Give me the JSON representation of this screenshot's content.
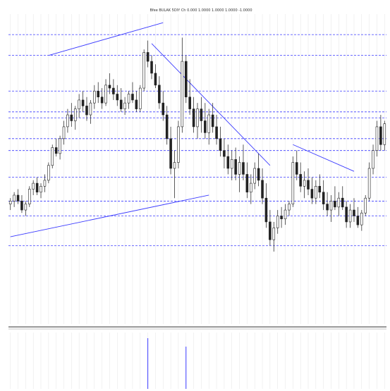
{
  "header": {
    "title": "Bfee BULAK 5DIY Ch 0.000 1.0000 1.0000 1.0000 -1.0000"
  },
  "chart_data": {
    "type": "candlestick",
    "title": "Bfee BULAK 5DIY Ch 0.000 1.0000 1.0000 1.0000 -1.0000",
    "xlabel": "",
    "ylabel": "",
    "ylim": [
      0,
      100
    ],
    "grid": true,
    "colors": {
      "candle": "#222222",
      "wick": "#333333",
      "level_line": "#3a3aff",
      "trend_line": "#3a3aff",
      "volume": "#3a3aff",
      "grid": "#e4e4e4"
    },
    "candles": [
      [
        38,
        40,
        36,
        39
      ],
      [
        39,
        42,
        37,
        41
      ],
      [
        41,
        43,
        38,
        39
      ],
      [
        39,
        41,
        35,
        36
      ],
      [
        36,
        39,
        34,
        38
      ],
      [
        38,
        44,
        37,
        43
      ],
      [
        43,
        46,
        41,
        45
      ],
      [
        45,
        47,
        41,
        42
      ],
      [
        42,
        45,
        40,
        44
      ],
      [
        44,
        48,
        42,
        46
      ],
      [
        46,
        52,
        45,
        51
      ],
      [
        51,
        58,
        50,
        57
      ],
      [
        57,
        60,
        54,
        55
      ],
      [
        55,
        61,
        53,
        60
      ],
      [
        60,
        66,
        58,
        64
      ],
      [
        64,
        70,
        62,
        68
      ],
      [
        68,
        72,
        64,
        66
      ],
      [
        66,
        71,
        63,
        70
      ],
      [
        70,
        75,
        67,
        73
      ],
      [
        73,
        76,
        69,
        71
      ],
      [
        71,
        74,
        66,
        68
      ],
      [
        68,
        73,
        65,
        72
      ],
      [
        72,
        78,
        70,
        76
      ],
      [
        76,
        79,
        72,
        74
      ],
      [
        74,
        77,
        70,
        72
      ],
      [
        72,
        80,
        71,
        78
      ],
      [
        78,
        82,
        75,
        77
      ],
      [
        77,
        80,
        73,
        75
      ],
      [
        75,
        78,
        71,
        73
      ],
      [
        73,
        77,
        69,
        70
      ],
      [
        70,
        74,
        68,
        72
      ],
      [
        72,
        76,
        70,
        75
      ],
      [
        75,
        79,
        72,
        73
      ],
      [
        73,
        76,
        69,
        70
      ],
      [
        70,
        78,
        69,
        77
      ],
      [
        77,
        90,
        76,
        89
      ],
      [
        89,
        93,
        84,
        86
      ],
      [
        86,
        88,
        80,
        82
      ],
      [
        82,
        85,
        77,
        78
      ],
      [
        78,
        81,
        70,
        72
      ],
      [
        72,
        76,
        66,
        68
      ],
      [
        68,
        71,
        58,
        60
      ],
      [
        60,
        64,
        48,
        50
      ],
      [
        50,
        56,
        40,
        52
      ],
      [
        52,
        66,
        50,
        64
      ],
      [
        64,
        94,
        62,
        86
      ],
      [
        86,
        88,
        72,
        74
      ],
      [
        74,
        80,
        68,
        70
      ],
      [
        70,
        74,
        62,
        64
      ],
      [
        64,
        72,
        60,
        70
      ],
      [
        70,
        74,
        62,
        66
      ],
      [
        66,
        72,
        60,
        62
      ],
      [
        62,
        70,
        58,
        68
      ],
      [
        68,
        72,
        62,
        64
      ],
      [
        64,
        68,
        58,
        60
      ],
      [
        60,
        64,
        54,
        56
      ],
      [
        56,
        60,
        50,
        54
      ],
      [
        54,
        58,
        48,
        50
      ],
      [
        50,
        56,
        46,
        53
      ],
      [
        53,
        57,
        46,
        48
      ],
      [
        48,
        54,
        42,
        52
      ],
      [
        52,
        58,
        46,
        48
      ],
      [
        48,
        52,
        40,
        42
      ],
      [
        42,
        48,
        38,
        45
      ],
      [
        45,
        52,
        43,
        50
      ],
      [
        50,
        55,
        44,
        46
      ],
      [
        46,
        50,
        38,
        40
      ],
      [
        40,
        45,
        30,
        32
      ],
      [
        32,
        36,
        24,
        26
      ],
      [
        26,
        32,
        22,
        30
      ],
      [
        30,
        36,
        28,
        34
      ],
      [
        34,
        37,
        30,
        33
      ],
      [
        33,
        38,
        31,
        36
      ],
      [
        36,
        39,
        34,
        38
      ],
      [
        38,
        54,
        37,
        52
      ],
      [
        52,
        56,
        46,
        48
      ],
      [
        48,
        52,
        42,
        44
      ],
      [
        44,
        49,
        40,
        46
      ],
      [
        46,
        50,
        41,
        43
      ],
      [
        43,
        47,
        38,
        40
      ],
      [
        40,
        46,
        38,
        44
      ],
      [
        44,
        48,
        40,
        42
      ],
      [
        42,
        46,
        36,
        38
      ],
      [
        38,
        42,
        34,
        36
      ],
      [
        36,
        41,
        32,
        39
      ],
      [
        39,
        44,
        36,
        37
      ],
      [
        37,
        42,
        34,
        40
      ],
      [
        40,
        44,
        36,
        37
      ],
      [
        37,
        39,
        30,
        32
      ],
      [
        32,
        38,
        30,
        36
      ],
      [
        36,
        40,
        32,
        34
      ],
      [
        34,
        37,
        30,
        31
      ],
      [
        31,
        36,
        29,
        35
      ],
      [
        35,
        41,
        34,
        40
      ],
      [
        40,
        52,
        39,
        50
      ],
      [
        50,
        58,
        48,
        56
      ],
      [
        56,
        66,
        54,
        64
      ],
      [
        64,
        68,
        56,
        58
      ],
      [
        58,
        66,
        56,
        65
      ]
    ],
    "horizontal_levels": [
      95,
      88,
      76,
      69,
      67,
      60,
      56,
      47,
      39,
      34,
      24
    ],
    "trendlines": [
      {
        "from": [
          10,
          88
        ],
        "to": [
          40,
          99
        ]
      },
      {
        "from": [
          0,
          27
        ],
        "to": [
          52,
          41
        ]
      },
      {
        "from": [
          37,
          92
        ],
        "to": [
          68,
          51
        ]
      },
      {
        "from": [
          74,
          58
        ],
        "to": [
          90,
          49
        ]
      }
    ],
    "volume": [
      0,
      0,
      0,
      0,
      0,
      0,
      0,
      0,
      0,
      0,
      0,
      0,
      0,
      0,
      0,
      0,
      0,
      0,
      0,
      0,
      0,
      0,
      0,
      0,
      0,
      0,
      0,
      0,
      0,
      0,
      0,
      0,
      0,
      0,
      0,
      0,
      90,
      0,
      0,
      0,
      0,
      0,
      0,
      0,
      0,
      0,
      75,
      0,
      0,
      0,
      0,
      0,
      0,
      0,
      0,
      0,
      0,
      0,
      0,
      0,
      0,
      0,
      0,
      0,
      0,
      0,
      0,
      0,
      0,
      0,
      0,
      0,
      0,
      0,
      0,
      0,
      0,
      0,
      0,
      0,
      0,
      0,
      0,
      0,
      0,
      0,
      0,
      0,
      0,
      0,
      0,
      0,
      0,
      0,
      0,
      0,
      0,
      0,
      0
    ]
  }
}
